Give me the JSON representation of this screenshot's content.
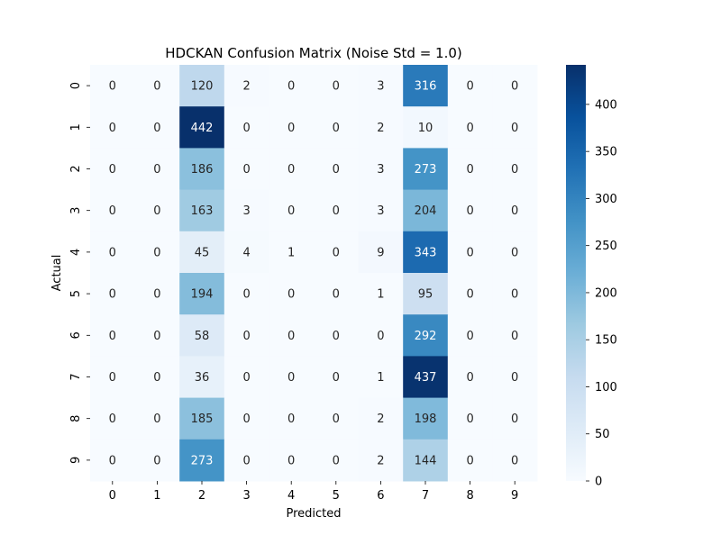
{
  "chart_data": {
    "type": "heatmap",
    "title": "HDCKAN Confusion Matrix (Noise Std = 1.0)",
    "xlabel": "Predicted",
    "ylabel": "Actual",
    "x_categories": [
      "0",
      "1",
      "2",
      "3",
      "4",
      "5",
      "6",
      "7",
      "8",
      "9"
    ],
    "y_categories": [
      "0",
      "1",
      "2",
      "3",
      "4",
      "5",
      "6",
      "7",
      "8",
      "9"
    ],
    "matrix": [
      [
        0,
        0,
        120,
        2,
        0,
        0,
        3,
        316,
        0,
        0
      ],
      [
        0,
        0,
        442,
        0,
        0,
        0,
        2,
        10,
        0,
        0
      ],
      [
        0,
        0,
        186,
        0,
        0,
        0,
        3,
        273,
        0,
        0
      ],
      [
        0,
        0,
        163,
        3,
        0,
        0,
        3,
        204,
        0,
        0
      ],
      [
        0,
        0,
        45,
        4,
        1,
        0,
        9,
        343,
        0,
        0
      ],
      [
        0,
        0,
        194,
        0,
        0,
        0,
        1,
        95,
        0,
        0
      ],
      [
        0,
        0,
        58,
        0,
        0,
        0,
        0,
        292,
        0,
        0
      ],
      [
        0,
        0,
        36,
        0,
        0,
        0,
        1,
        437,
        0,
        0
      ],
      [
        0,
        0,
        185,
        0,
        0,
        0,
        2,
        198,
        0,
        0
      ],
      [
        0,
        0,
        273,
        0,
        0,
        0,
        2,
        144,
        0,
        0
      ]
    ],
    "colormap": "Blues",
    "vmin": 0,
    "vmax": 442,
    "colorbar_ticks": [
      0,
      50,
      100,
      150,
      200,
      250,
      300,
      350,
      400
    ],
    "annotate_cells": true,
    "grid": false
  }
}
